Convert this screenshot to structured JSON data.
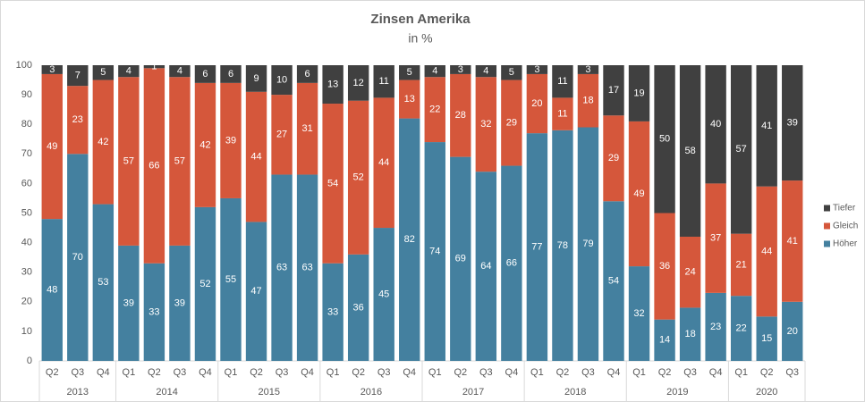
{
  "chart_data": {
    "type": "stacked_bar",
    "title": "Zinsen Amerika",
    "subtitle": "in %",
    "groups": [
      {
        "label": "2013",
        "categories": [
          "Q2",
          "Q3",
          "Q4"
        ]
      },
      {
        "label": "2014",
        "categories": [
          "Q1",
          "Q2",
          "Q3",
          "Q4"
        ]
      },
      {
        "label": "2015",
        "categories": [
          "Q1",
          "Q2",
          "Q3",
          "Q4"
        ]
      },
      {
        "label": "2016",
        "categories": [
          "Q1",
          "Q2",
          "Q3",
          "Q4"
        ]
      },
      {
        "label": "2017",
        "categories": [
          "Q1",
          "Q2",
          "Q3",
          "Q4"
        ]
      },
      {
        "label": "2018",
        "categories": [
          "Q1",
          "Q2",
          "Q3",
          "Q4"
        ]
      },
      {
        "label": "2019",
        "categories": [
          "Q1",
          "Q2",
          "Q3",
          "Q4"
        ]
      },
      {
        "label": "2020",
        "categories": [
          "Q1",
          "Q2",
          "Q3"
        ]
      }
    ],
    "series": [
      {
        "name": "Höher",
        "color": "#44809f",
        "values": [
          48,
          70,
          53,
          39,
          33,
          39,
          52,
          55,
          47,
          63,
          63,
          33,
          36,
          45,
          82,
          74,
          69,
          64,
          66,
          77,
          78,
          79,
          54,
          32,
          14,
          18,
          23,
          22,
          15,
          20
        ]
      },
      {
        "name": "Gleich",
        "color": "#d5573b",
        "values": [
          49,
          23,
          42,
          57,
          66,
          57,
          42,
          39,
          44,
          27,
          31,
          54,
          52,
          44,
          13,
          22,
          28,
          32,
          29,
          20,
          11,
          18,
          29,
          49,
          36,
          24,
          37,
          21,
          44,
          41
        ]
      },
      {
        "name": "Tiefer",
        "color": "#404040",
        "values": [
          3,
          7,
          5,
          4,
          1,
          4,
          6,
          6,
          9,
          10,
          6,
          13,
          12,
          11,
          5,
          4,
          3,
          4,
          5,
          3,
          11,
          3,
          17,
          19,
          50,
          58,
          40,
          57,
          41,
          39
        ]
      }
    ],
    "ylim": [
      0,
      100
    ],
    "yticks": [
      0,
      10,
      20,
      30,
      40,
      50,
      60,
      70,
      80,
      90,
      100
    ],
    "legend": "right"
  }
}
